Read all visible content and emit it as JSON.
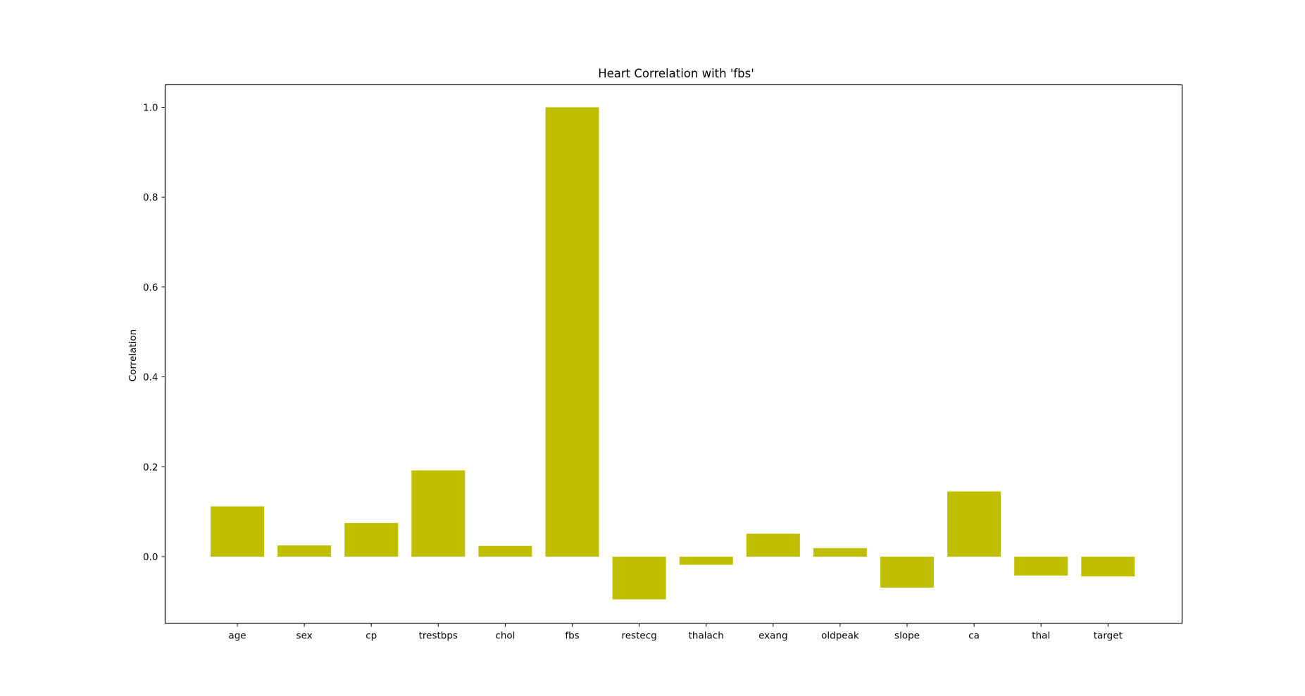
{
  "chart_data": {
    "type": "bar",
    "title": "Heart Correlation with 'fbs'",
    "xlabel": "",
    "ylabel": "Correlation",
    "categories": [
      "age",
      "sex",
      "cp",
      "trestbps",
      "chol",
      "fbs",
      "restecg",
      "thalach",
      "exang",
      "oldpeak",
      "slope",
      "ca",
      "thal",
      "target"
    ],
    "values": [
      0.112,
      0.025,
      0.075,
      0.192,
      0.024,
      1.0,
      -0.095,
      -0.018,
      0.051,
      0.019,
      -0.069,
      0.145,
      -0.042,
      -0.044
    ],
    "ylim": [
      -0.148,
      1.05
    ],
    "yticks": [
      "0.0",
      "0.2",
      "0.4",
      "0.6",
      "0.8",
      "1.0"
    ],
    "ytick_values": [
      0.0,
      0.2,
      0.4,
      0.6,
      0.8,
      1.0
    ],
    "bar_color": "#bfbf00",
    "grid": false,
    "legend": "none"
  }
}
